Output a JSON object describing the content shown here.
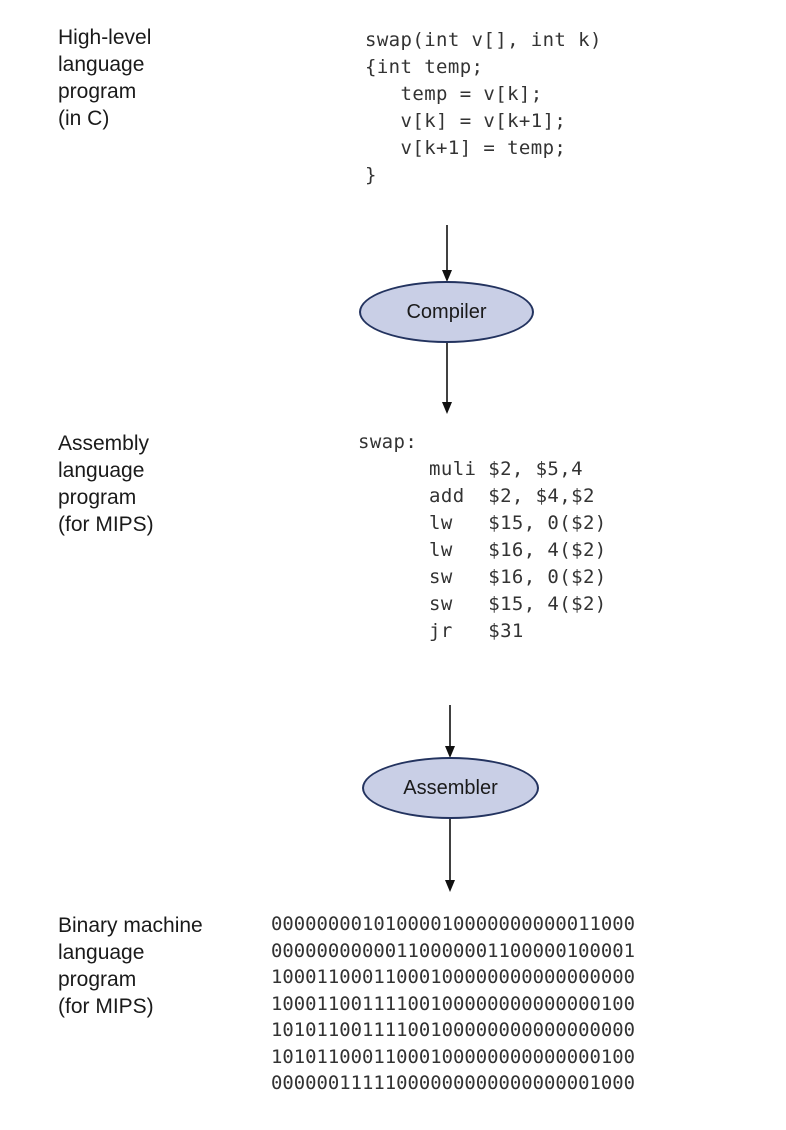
{
  "stages": {
    "high_level": {
      "label_lines": [
        "High-level",
        "language",
        "program",
        "(in C)"
      ],
      "code_lines": [
        "swap(int v[], int k)",
        "{int temp;",
        "   temp = v[k];",
        "   v[k] = v[k+1];",
        "   v[k+1] = temp;",
        "}"
      ]
    },
    "compiler": {
      "label": "Compiler"
    },
    "assembly": {
      "label_lines": [
        "Assembly",
        "language",
        "program",
        "(for MIPS)"
      ],
      "code_lines": [
        "swap:",
        "      muli $2, $5,4",
        "      add  $2, $4,$2",
        "      lw   $15, 0($2)",
        "      lw   $16, 4($2)",
        "      sw   $16, 0($2)",
        "      sw   $15, 4($2)",
        "      jr   $31"
      ]
    },
    "assembler": {
      "label": "Assembler"
    },
    "binary": {
      "label_lines": [
        "Binary machine",
        "language",
        "program",
        "(for MIPS)"
      ],
      "code_lines": [
        "00000000101000010000000000011000",
        "00000000000110000001100000100001",
        "10001100011000100000000000000000",
        "10001100111100100000000000000100",
        "10101100111100100000000000000000",
        "10101100011000100000000000000100",
        "00000011111000000000000000001000"
      ]
    }
  },
  "colors": {
    "node_fill": "#c9cfe6",
    "node_stroke": "#23335f",
    "text": "#1a1a1a",
    "arrow": "#111111"
  }
}
